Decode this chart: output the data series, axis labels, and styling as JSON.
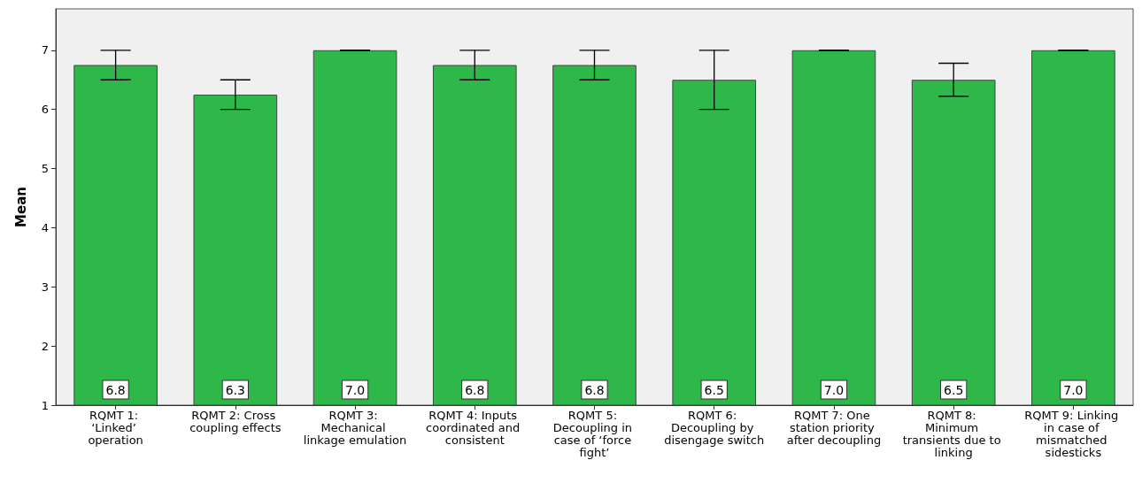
{
  "chart_data": {
    "type": "bar",
    "ylabel": "Mean",
    "categories": [
      "RQMT 1: ‘Linked’ operation",
      "RQMT 2: Cross coupling effects",
      "RQMT 3: Mechanical linkage emulation",
      "RQMT 4: Inputs coordinated and consistent",
      "RQMT 5: Decoupling in case of ‘force fight’",
      "RQMT 6: Decoupling by disengage switch",
      "RQMT 7: One station priority after decoupling",
      "RQMT 8: Minimum transients due to linking",
      "RQMT 9: Linking in case of mismatched sidesticks"
    ],
    "values": [
      6.75,
      6.25,
      7.0,
      6.75,
      6.75,
      6.5,
      7.0,
      6.5,
      7.0
    ],
    "value_labels": [
      "6.8",
      "6.3",
      "7.0",
      "6.8",
      "6.8",
      "6.5",
      "7.0",
      "6.5",
      "7.0"
    ],
    "errors": [
      [
        6.5,
        7.0
      ],
      [
        6.0,
        6.5
      ],
      [
        7.0,
        7.0
      ],
      [
        6.5,
        7.0
      ],
      [
        6.5,
        7.0
      ],
      [
        6.0,
        7.0
      ],
      [
        7.0,
        7.0
      ],
      [
        6.22,
        6.78
      ],
      [
        7.0,
        7.0
      ]
    ],
    "color": "#2eb84a",
    "ylim": [
      1,
      7.7
    ],
    "yticks": [
      1,
      2,
      3,
      4,
      5,
      6,
      7
    ],
    "grid": false
  }
}
